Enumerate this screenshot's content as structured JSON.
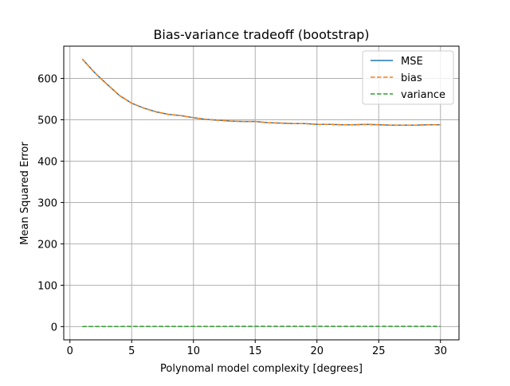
{
  "chart_data": {
    "type": "line",
    "title": "Bias-variance tradeoff (bootstrap)",
    "xlabel": "Polynomal model complexity [degrees]",
    "ylabel": "Mean Squared Error",
    "xlim": [
      -0.5,
      31.5
    ],
    "ylim": [
      -32,
      678
    ],
    "xticks": [
      0,
      5,
      10,
      15,
      20,
      25,
      30
    ],
    "yticks": [
      0,
      100,
      200,
      300,
      400,
      500,
      600
    ],
    "grid": true,
    "legend_position": "top-right",
    "x": [
      1,
      2,
      3,
      4,
      5,
      6,
      7,
      8,
      9,
      10,
      11,
      12,
      13,
      14,
      15,
      16,
      17,
      18,
      19,
      20,
      21,
      22,
      23,
      24,
      25,
      26,
      27,
      28,
      29,
      30
    ],
    "series": [
      {
        "name": "MSE",
        "color": "#1f77b4",
        "style": "solid",
        "values": [
          647,
          614,
          586,
          559,
          540,
          528,
          519,
          513,
          510,
          505,
          501,
          499,
          497,
          496,
          496,
          493,
          492,
          491,
          491,
          489,
          489,
          488,
          488,
          489,
          488,
          487,
          487,
          487,
          488,
          488
        ]
      },
      {
        "name": "bias",
        "color": "#ff7f0e",
        "style": "dashed",
        "values": [
          647,
          614,
          586,
          559,
          540,
          528,
          519,
          513,
          510,
          505,
          501,
          499,
          497,
          496,
          496,
          493,
          492,
          491,
          491,
          489,
          489,
          488,
          488,
          489,
          488,
          487,
          487,
          487,
          488,
          488
        ]
      },
      {
        "name": "variance",
        "color": "#2ca02c",
        "style": "dashed",
        "values": [
          0.1,
          0.2,
          0.3,
          0.3,
          0.4,
          0.4,
          0.4,
          0.5,
          0.5,
          0.5,
          0.5,
          0.5,
          0.6,
          0.6,
          0.6,
          0.6,
          0.6,
          0.6,
          0.6,
          0.7,
          0.7,
          0.7,
          0.7,
          0.7,
          0.7,
          0.7,
          0.7,
          0.7,
          0.7,
          0.7
        ]
      }
    ]
  }
}
